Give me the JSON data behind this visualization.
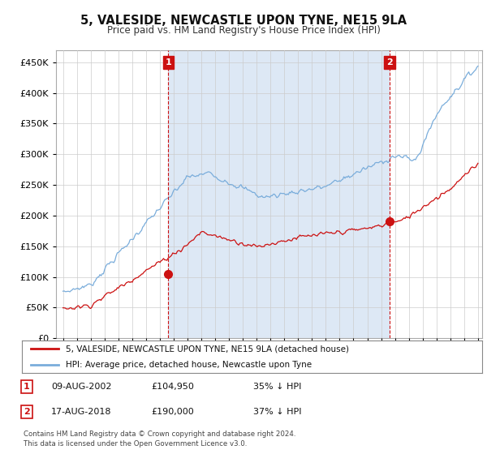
{
  "title": "5, VALESIDE, NEWCASTLE UPON TYNE, NE15 9LA",
  "subtitle": "Price paid vs. HM Land Registry's House Price Index (HPI)",
  "ytick_values": [
    0,
    50000,
    100000,
    150000,
    200000,
    250000,
    300000,
    350000,
    400000,
    450000
  ],
  "ylim": [
    0,
    470000
  ],
  "xlim_start": 1994.5,
  "xlim_end": 2025.3,
  "hpi_color": "#7aaddb",
  "price_color": "#cc1111",
  "marker1_x": 2002.62,
  "marker1_y": 104950,
  "marker2_x": 2018.62,
  "marker2_y": 190000,
  "annotation1": "1",
  "annotation2": "2",
  "legend_label1": "5, VALESIDE, NEWCASTLE UPON TYNE, NE15 9LA (detached house)",
  "legend_label2": "HPI: Average price, detached house, Newcastle upon Tyne",
  "table_row1": [
    "1",
    "09-AUG-2002",
    "£104,950",
    "35% ↓ HPI"
  ],
  "table_row2": [
    "2",
    "17-AUG-2018",
    "£190,000",
    "37% ↓ HPI"
  ],
  "footnote": "Contains HM Land Registry data © Crown copyright and database right 2024.\nThis data is licensed under the Open Government Licence v3.0.",
  "shade_color": "#dde8f5",
  "plot_bg_color": "#ffffff",
  "grid_color": "#cccccc",
  "fig_bg": "#f0f0f0"
}
